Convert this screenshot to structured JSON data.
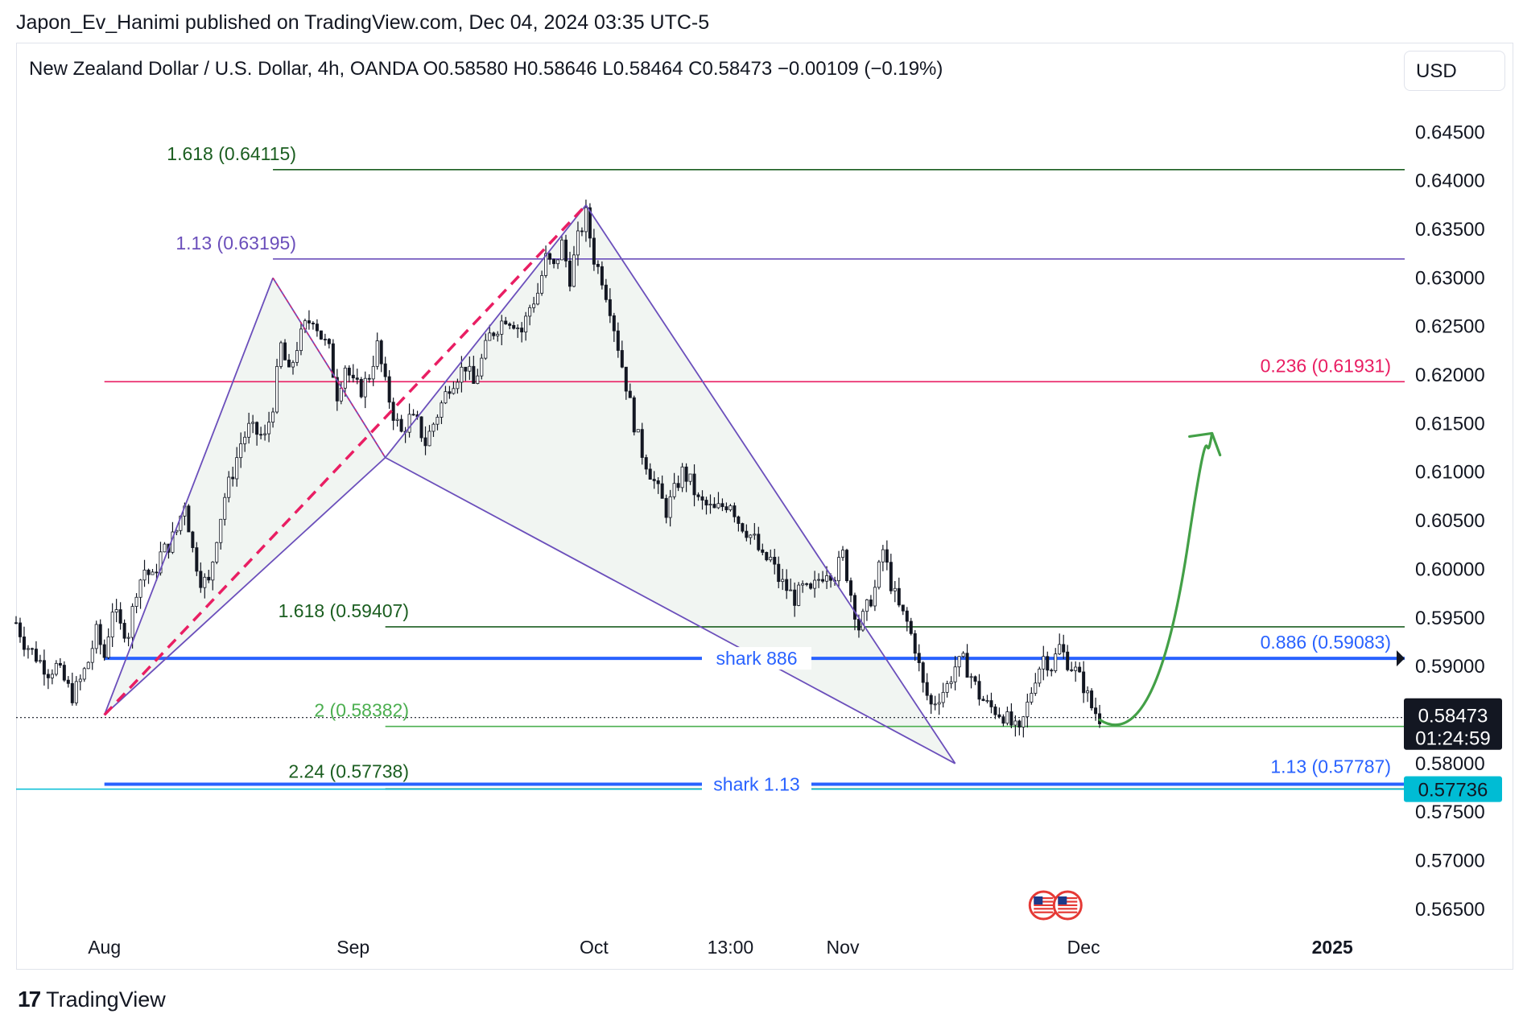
{
  "header": {
    "published_line": "Japon_Ev_Hanimi published on TradingView.com, Dec 04, 2024 03:35 UTC-5"
  },
  "legend": {
    "text": "New Zealand Dollar / U.S. Dollar, 4h, OANDA  O0.58580  H0.58646  L0.58464  C0.58473  −0.00109 (−0.19%)"
  },
  "currency_button": {
    "label": "USD"
  },
  "footer": {
    "brand": "TradingView",
    "logo_mark": "17"
  },
  "colors": {
    "candle": "#131722",
    "pattern": "#6b4fbb",
    "pattern_fill": "#eef2ef",
    "dashed": "#e91e63",
    "level_dark_green": "#1b5e20",
    "level_green": "#4caf50",
    "level_blue": "#2962ff",
    "level_red": "#e91e63",
    "level_cyan": "#00bcd4",
    "arrow": "#43a047"
  },
  "chart_data": {
    "type": "candlestick",
    "symbol": "NZDUSD",
    "timeframe": "4h",
    "exchange": "OANDA",
    "ohlc_last": {
      "open": 0.5858,
      "high": 0.58646,
      "low": 0.58464,
      "close": 0.58473,
      "change": -0.00109,
      "change_pct": -0.19
    },
    "ylim": [
      0.5625,
      0.6495
    ],
    "y_ticks": [
      "0.64500",
      "0.64000",
      "0.63500",
      "0.63000",
      "0.62500",
      "0.62000",
      "0.61500",
      "0.61000",
      "0.60500",
      "0.60000",
      "0.59500",
      "0.59000",
      "0.58000",
      "0.57500",
      "0.57000",
      "0.56500"
    ],
    "x_labels": [
      {
        "label": "Aug",
        "t": 0.0
      },
      {
        "label": "Sep",
        "t": 31.0
      },
      {
        "label": "Oct",
        "t": 61.0
      },
      {
        "label": "13:00",
        "t": 78.0
      },
      {
        "label": "Nov",
        "t": 92.0
      },
      {
        "label": "Dec",
        "t": 122.0
      },
      {
        "label": "2025",
        "t": 153.0
      }
    ],
    "xlim": [
      -11.0,
      161.0
    ],
    "price_path": [
      [
        -11,
        0.5945
      ],
      [
        -10,
        0.5925
      ],
      [
        -9,
        0.5915
      ],
      [
        -8,
        0.5905
      ],
      [
        -7,
        0.5895
      ],
      [
        -6,
        0.59
      ],
      [
        -5,
        0.5885
      ],
      [
        -4,
        0.587
      ],
      [
        -3,
        0.5885
      ],
      [
        -2,
        0.5905
      ],
      [
        -1,
        0.5935
      ],
      [
        0,
        0.591
      ],
      [
        1,
        0.596
      ],
      [
        2,
        0.594
      ],
      [
        3,
        0.5935
      ],
      [
        4,
        0.598
      ],
      [
        5,
        0.6
      ],
      [
        6,
        0.599
      ],
      [
        7,
        0.6015
      ],
      [
        8,
        0.6025
      ],
      [
        9,
        0.604
      ],
      [
        10,
        0.607
      ],
      [
        11,
        0.602
      ],
      [
        12,
        0.599
      ],
      [
        13,
        0.5985
      ],
      [
        14,
        0.6035
      ],
      [
        15,
        0.6075
      ],
      [
        16,
        0.61
      ],
      [
        17,
        0.613
      ],
      [
        18,
        0.6145
      ],
      [
        19,
        0.614
      ],
      [
        20,
        0.6135
      ],
      [
        21,
        0.617
      ],
      [
        22,
        0.623
      ],
      [
        23,
        0.62
      ],
      [
        24,
        0.623
      ],
      [
        25,
        0.625
      ],
      [
        26,
        0.626
      ],
      [
        27,
        0.624
      ],
      [
        28,
        0.6225
      ],
      [
        29,
        0.618
      ],
      [
        30,
        0.621
      ],
      [
        31,
        0.619
      ],
      [
        32,
        0.6185
      ],
      [
        33,
        0.62
      ],
      [
        34,
        0.623
      ],
      [
        35,
        0.619
      ],
      [
        36,
        0.616
      ],
      [
        37,
        0.614
      ],
      [
        38,
        0.6155
      ],
      [
        39,
        0.615
      ],
      [
        40,
        0.613
      ],
      [
        41,
        0.615
      ],
      [
        42,
        0.617
      ],
      [
        43,
        0.619
      ],
      [
        44,
        0.62
      ],
      [
        45,
        0.621
      ],
      [
        46,
        0.619
      ],
      [
        47,
        0.6215
      ],
      [
        48,
        0.624
      ],
      [
        49,
        0.625
      ],
      [
        50,
        0.626
      ],
      [
        51,
        0.6255
      ],
      [
        52,
        0.6245
      ],
      [
        53,
        0.627
      ],
      [
        54,
        0.6285
      ],
      [
        55,
        0.632
      ],
      [
        56,
        0.631
      ],
      [
        57,
        0.6335
      ],
      [
        58,
        0.63
      ],
      [
        59,
        0.634
      ],
      [
        60,
        0.6365
      ],
      [
        61,
        0.632
      ],
      [
        62,
        0.63
      ],
      [
        63,
        0.627
      ],
      [
        64,
        0.623
      ],
      [
        65,
        0.619
      ],
      [
        66,
        0.615
      ],
      [
        67,
        0.612
      ],
      [
        68,
        0.61
      ],
      [
        69,
        0.608
      ],
      [
        70,
        0.606
      ],
      [
        71,
        0.608
      ],
      [
        72,
        0.61
      ],
      [
        73,
        0.609
      ],
      [
        74,
        0.607
      ],
      [
        75,
        0.6065
      ],
      [
        76,
        0.606
      ],
      [
        77,
        0.6065
      ],
      [
        78,
        0.607
      ],
      [
        79,
        0.605
      ],
      [
        80,
        0.604
      ],
      [
        81,
        0.603
      ],
      [
        82,
        0.601
      ],
      [
        83,
        0.601
      ],
      [
        84,
        0.599
      ],
      [
        85,
        0.598
      ],
      [
        86,
        0.597
      ],
      [
        87,
        0.598
      ],
      [
        88,
        0.5975
      ],
      [
        89,
        0.599
      ],
      [
        90,
        0.6
      ],
      [
        91,
        0.5995
      ],
      [
        92,
        0.6015
      ],
      [
        93,
        0.5975
      ],
      [
        94,
        0.594
      ],
      [
        95,
        0.596
      ],
      [
        96,
        0.598
      ],
      [
        97,
        0.602
      ],
      [
        98,
        0.5985
      ],
      [
        99,
        0.596
      ],
      [
        100,
        0.5945
      ],
      [
        101,
        0.592
      ],
      [
        102,
        0.588
      ],
      [
        103,
        0.586
      ],
      [
        104,
        0.587
      ],
      [
        105,
        0.588
      ],
      [
        106,
        0.59
      ],
      [
        107,
        0.5905
      ],
      [
        108,
        0.589
      ],
      [
        109,
        0.587
      ],
      [
        110,
        0.586
      ],
      [
        111,
        0.5855
      ],
      [
        112,
        0.585
      ],
      [
        113,
        0.584
      ],
      [
        114,
        0.583
      ],
      [
        115,
        0.586
      ],
      [
        116,
        0.589
      ],
      [
        117,
        0.591
      ],
      [
        118,
        0.59
      ],
      [
        119,
        0.592
      ],
      [
        120,
        0.5905
      ],
      [
        121,
        0.5895
      ],
      [
        122,
        0.588
      ],
      [
        123,
        0.5858
      ],
      [
        124,
        0.58473
      ]
    ],
    "pattern": {
      "name": "shark harmonic",
      "points": [
        [
          0,
          0.585
        ],
        [
          21,
          0.63
        ],
        [
          35,
          0.6115
        ],
        [
          60,
          0.6375
        ],
        [
          106,
          0.58
        ]
      ],
      "dashed_line": [
        [
          0,
          0.585
        ],
        [
          60,
          0.6375
        ]
      ],
      "dashed_short": [
        [
          21,
          0.63
        ],
        [
          35,
          0.6115
        ]
      ]
    },
    "projection_arrow": {
      "from": [
        124,
        0.5845
      ],
      "to": [
        138,
        0.614
      ]
    },
    "levels": [
      {
        "label": "1.618 (0.64115)",
        "value": 0.64115,
        "color": "#1b5e20",
        "from_t": 21,
        "label_side": "left"
      },
      {
        "label": "1.13 (0.63195)",
        "value": 0.63195,
        "color": "#6b4fbb",
        "from_t": 21,
        "label_side": "left"
      },
      {
        "label": "0.236 (0.61931)",
        "value": 0.61931,
        "color": "#e91e63",
        "from_t": 0,
        "label_side": "right"
      },
      {
        "label": "1.618 (0.59407)",
        "value": 0.59407,
        "color": "#1b5e20",
        "from_t": 35,
        "label_side": "left"
      },
      {
        "label": "0.886 (0.59083)",
        "value": 0.59083,
        "color": "#2962ff",
        "from_t": 0,
        "label_side": "right",
        "mid_label": "shark 886",
        "thick": true
      },
      {
        "label": "2 (0.58382)",
        "value": 0.58382,
        "color": "#4caf50",
        "from_t": 35,
        "label_side": "left"
      },
      {
        "label": "2.24 (0.57738)",
        "value": 0.57738,
        "color": "#1b5e20",
        "from_t": 35,
        "label_side": "left"
      },
      {
        "label": "1.13 (0.57787)",
        "value": 0.57787,
        "color": "#2962ff",
        "from_t": 0,
        "label_side": "right",
        "mid_label": "shark 1.13",
        "thick": true
      }
    ],
    "current_price": {
      "value": 0.58473,
      "label": "0.58473",
      "countdown": "01:24:59"
    },
    "alert_price": {
      "value": 0.57736,
      "label": "0.57736"
    },
    "events_marker": "us-flag-icons"
  }
}
